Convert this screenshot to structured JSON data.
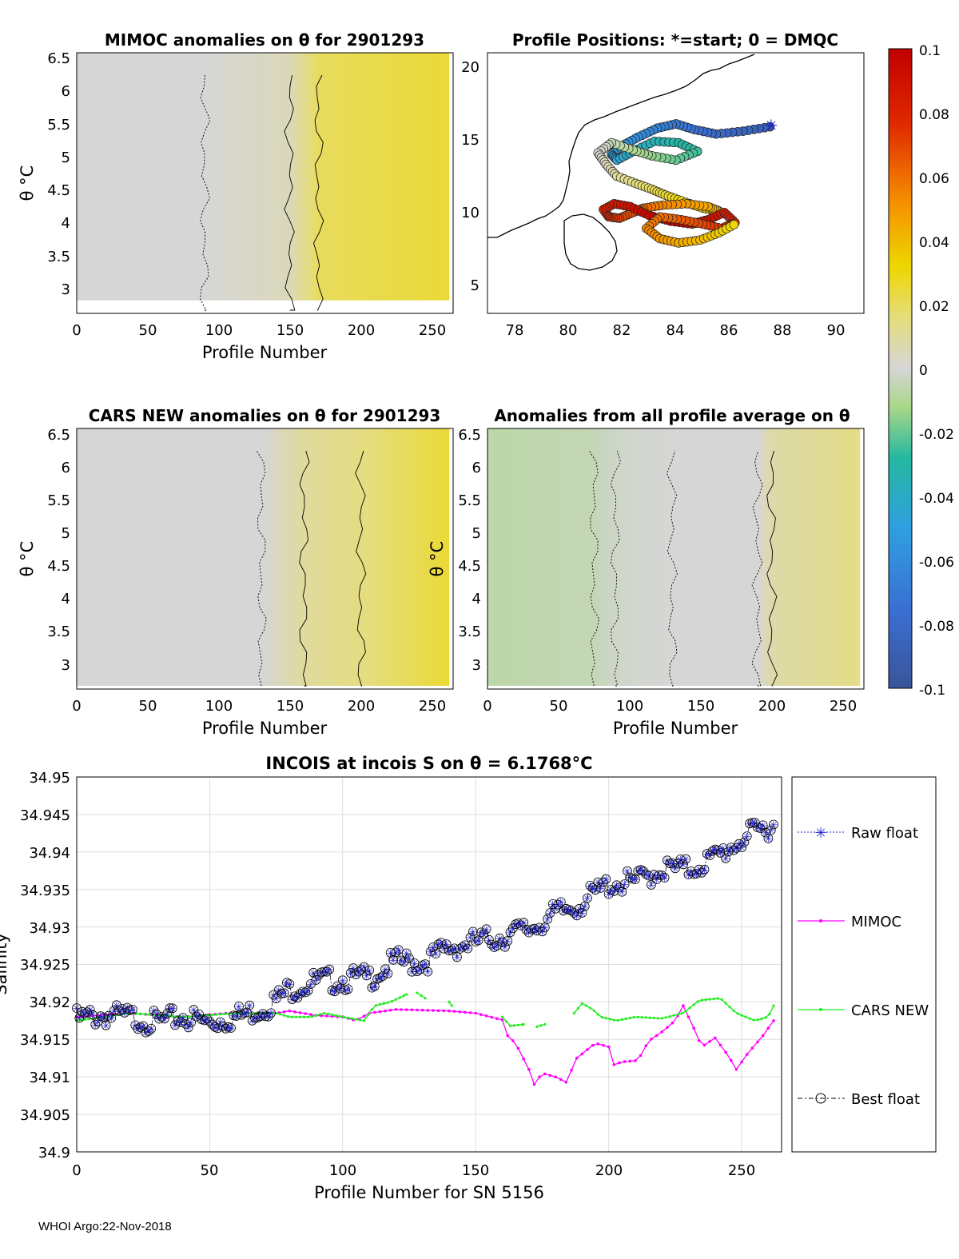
{
  "footer": "WHOI Argo:22-Nov-2018",
  "colors": {
    "raw_float": "#1f1fd0",
    "mimoc": "#ff00ff",
    "cars": "#22ee22",
    "best": "#000000",
    "grid": "#dddddd"
  },
  "colorbar": {
    "ticks": [
      "0.1",
      "0.08",
      "0.06",
      "0.04",
      "0.02",
      "0",
      "-0.02",
      "-0.04",
      "-0.06",
      "-0.08",
      "-0.1"
    ],
    "range": [
      -0.1,
      0.1
    ]
  },
  "panels": {
    "mimoc": {
      "title": "MIMOC anomalies on θ  for 2901293",
      "xlabel": "Profile Number",
      "ylabel": "θ °C",
      "xticks": [
        "0",
        "50",
        "100",
        "150",
        "200",
        "250"
      ],
      "yticks": [
        "6.5",
        "6",
        "5.5",
        "5",
        "4.5",
        "4",
        "3.5",
        "3"
      ]
    },
    "positions": {
      "title": "Profile Positions: *=start; 0 = DMQC",
      "xticks": [
        "78",
        "80",
        "82",
        "84",
        "86",
        "88",
        "90"
      ],
      "yticks": [
        "20",
        "15",
        "10",
        "5"
      ]
    },
    "cars": {
      "title": "CARS NEW anomalies on θ for 2901293",
      "xlabel": "Profile Number",
      "ylabel": "θ °C",
      "xticks": [
        "0",
        "50",
        "100",
        "150",
        "200",
        "250"
      ],
      "yticks": [
        "6.5",
        "6",
        "5.5",
        "5",
        "4.5",
        "4",
        "3.5",
        "3"
      ]
    },
    "average": {
      "title": "Anomalies from all profile average on θ",
      "xlabel": "Profile Number",
      "ylabel": "θ °C",
      "xticks": [
        "0",
        "50",
        "100",
        "150",
        "200",
        "250"
      ],
      "yticks": [
        "6.5",
        "6",
        "5.5",
        "5",
        "4.5",
        "4",
        "3.5",
        "3"
      ]
    }
  },
  "chart_data": {
    "type": "line",
    "title": "INCOIS at incois S on θ = 6.1768°C",
    "xlabel": "Profile Number for SN 5156",
    "ylabel": "Salinity",
    "xlim": [
      0,
      265
    ],
    "ylim": [
      34.9,
      34.95
    ],
    "xticks": [
      "0",
      "50",
      "100",
      "150",
      "200",
      "250"
    ],
    "yticks": [
      "34.95",
      "34.945",
      "34.94",
      "34.935",
      "34.93",
      "34.925",
      "34.92",
      "34.915",
      "34.91",
      "34.905",
      "34.9"
    ],
    "legend": [
      "Raw float",
      "MIMOC",
      "CARS NEW",
      "Best float"
    ],
    "series": [
      {
        "name": "Raw float / Best float",
        "knots": [
          [
            0,
            34.9185
          ],
          [
            10,
            34.919
          ],
          [
            20,
            34.9188
          ],
          [
            30,
            34.918
          ],
          [
            40,
            34.9188
          ],
          [
            50,
            34.918
          ],
          [
            60,
            34.9188
          ],
          [
            70,
            34.92
          ],
          [
            75,
            34.921
          ],
          [
            80,
            34.9225
          ],
          [
            90,
            34.9235
          ],
          [
            100,
            34.9238
          ],
          [
            110,
            34.924
          ],
          [
            120,
            34.9262
          ],
          [
            130,
            34.926
          ],
          [
            140,
            34.928
          ],
          [
            150,
            34.9288
          ],
          [
            160,
            34.9295
          ],
          [
            170,
            34.9305
          ],
          [
            180,
            34.9325
          ],
          [
            190,
            34.934
          ],
          [
            200,
            34.9365
          ],
          [
            210,
            34.9368
          ],
          [
            220,
            34.9385
          ],
          [
            230,
            34.9385
          ],
          [
            240,
            34.94
          ],
          [
            250,
            34.9425
          ],
          [
            262,
            34.9445
          ]
        ]
      },
      {
        "name": "MIMOC",
        "knots": [
          [
            0,
            34.918
          ],
          [
            20,
            34.9185
          ],
          [
            40,
            34.918
          ],
          [
            60,
            34.9186
          ],
          [
            75,
            34.9185
          ],
          [
            80,
            34.9188
          ],
          [
            90,
            34.9182
          ],
          [
            100,
            34.918
          ],
          [
            105,
            34.9175
          ],
          [
            110,
            34.9185
          ],
          [
            120,
            34.919
          ],
          [
            140,
            34.9188
          ],
          [
            150,
            34.9185
          ],
          [
            160,
            34.9176
          ],
          [
            162,
            34.9155
          ],
          [
            165,
            34.9145
          ],
          [
            170,
            34.911
          ],
          [
            172,
            34.909
          ],
          [
            175,
            34.9105
          ],
          [
            180,
            34.91
          ],
          [
            184,
            34.9093
          ],
          [
            188,
            34.9125
          ],
          [
            195,
            34.9145
          ],
          [
            200,
            34.914
          ],
          [
            201,
            34.9115
          ],
          [
            205,
            34.912
          ],
          [
            211,
            34.9122
          ],
          [
            215,
            34.9148
          ],
          [
            220,
            34.916
          ],
          [
            225,
            34.9175
          ],
          [
            228,
            34.9195
          ],
          [
            232,
            34.9165
          ],
          [
            235,
            34.914
          ],
          [
            240,
            34.9152
          ],
          [
            245,
            34.9128
          ],
          [
            248,
            34.911
          ],
          [
            252,
            34.913
          ],
          [
            258,
            34.9155
          ],
          [
            262,
            34.9175
          ]
        ]
      },
      {
        "name": "CARS NEW",
        "segments": [
          [
            [
              0,
              34.9175
            ],
            [
              20,
              34.9185
            ],
            [
              40,
              34.918
            ],
            [
              60,
              34.9185
            ],
            [
              75,
              34.9185
            ],
            [
              80,
              34.918
            ],
            [
              88,
              34.918
            ],
            [
              93,
              34.9185
            ],
            [
              100,
              34.918
            ],
            [
              108,
              34.9175
            ],
            [
              112,
              34.9195
            ],
            [
              118,
              34.92
            ],
            [
              124,
              34.921
            ]
          ],
          [
            [
              128,
              34.9212
            ],
            [
              131,
              34.9205
            ]
          ],
          [
            [
              140,
              34.92
            ],
            [
              141,
              34.9195
            ]
          ],
          [
            [
              160,
              34.918
            ],
            [
              163,
              34.9168
            ],
            [
              168,
              34.917
            ]
          ],
          [
            [
              173,
              34.9167
            ],
            [
              176,
              34.917
            ]
          ],
          [
            [
              187,
              34.9185
            ],
            [
              190,
              34.9198
            ],
            [
              194,
              34.919
            ],
            [
              197,
              34.918
            ],
            [
              203,
              34.9175
            ],
            [
              210,
              34.918
            ],
            [
              220,
              34.9178
            ],
            [
              228,
              34.9185
            ],
            [
              234,
              34.9202
            ],
            [
              242,
              34.9205
            ],
            [
              248,
              34.9185
            ],
            [
              255,
              34.9175
            ],
            [
              260,
              34.918
            ],
            [
              262,
              34.9195
            ]
          ]
        ]
      }
    ],
    "panel_fields": {
      "mimoc": {
        "anomaly_by_profile": [
          [
            0,
            0.0
          ],
          [
            90,
            0.0
          ],
          [
            150,
            0.005
          ],
          [
            170,
            0.02
          ],
          [
            262,
            0.025
          ]
        ],
        "theta_range": [
          2.8,
          6.6
        ]
      },
      "cars": {
        "anomaly_by_profile": [
          [
            0,
            0.0
          ],
          [
            130,
            0.0
          ],
          [
            160,
            0.01
          ],
          [
            200,
            0.015
          ],
          [
            262,
            0.025
          ]
        ],
        "theta_range": [
          2.65,
          6.6
        ]
      },
      "average": {
        "anomaly_by_profile": [
          [
            0,
            -0.007
          ],
          [
            75,
            -0.005
          ],
          [
            90,
            -0.002
          ],
          [
            130,
            0.0
          ],
          [
            190,
            0.0
          ],
          [
            200,
            0.008
          ],
          [
            262,
            0.014
          ]
        ],
        "theta_range": [
          2.65,
          6.6
        ]
      }
    },
    "positions_track": {
      "lon": [
        87.5,
        86.5,
        85.5,
        84.7,
        84.0,
        83.3,
        82.6,
        82.0,
        81.6,
        81.8,
        82.4,
        83.2,
        84.1,
        84.8,
        84.0,
        83.1,
        82.4,
        81.6,
        81.1,
        81.4,
        81.8,
        82.5,
        83.1,
        83.6,
        84.2,
        85.0,
        85.6,
        85.2,
        84.4,
        83.5,
        82.8,
        82.4,
        81.9,
        81.5,
        81.3,
        81.7,
        82.3,
        83.0,
        83.8,
        84.6,
        85.2,
        85.8,
        86.2,
        85.7,
        85.0,
        84.2,
        83.4,
        82.9,
        83.4,
        84.1,
        84.9,
        85.6,
        86.3
      ],
      "lat": [
        15.9,
        15.6,
        15.4,
        15.7,
        16.1,
        15.8,
        15.2,
        14.6,
        14.0,
        13.6,
        14.2,
        14.9,
        14.8,
        14.2,
        13.6,
        13.9,
        14.3,
        14.8,
        14.1,
        13.3,
        12.5,
        12.0,
        11.6,
        11.2,
        10.8,
        10.3,
        10.1,
        10.4,
        10.6,
        10.5,
        10.3,
        10.0,
        9.6,
        9.7,
        10.2,
        10.6,
        10.4,
        9.8,
        9.4,
        9.2,
        9.5,
        10.0,
        9.3,
        8.9,
        9.2,
        9.5,
        9.7,
        8.9,
        8.2,
        7.9,
        8.1,
        8.6,
        9.3
      ],
      "color_value": [
        -0.09,
        -0.085,
        -0.08,
        -0.075,
        -0.07,
        -0.065,
        -0.06,
        -0.055,
        -0.05,
        -0.045,
        -0.04,
        -0.035,
        -0.03,
        -0.025,
        -0.02,
        -0.015,
        -0.01,
        -0.005,
        0.0,
        0.005,
        0.01,
        0.015,
        0.02,
        0.025,
        0.03,
        0.035,
        0.04,
        0.045,
        0.05,
        0.055,
        0.06,
        0.065,
        0.07,
        0.075,
        0.08,
        0.085,
        0.09,
        0.095,
        0.1,
        0.095,
        0.09,
        0.085,
        0.08,
        0.075,
        0.07,
        0.065,
        0.06,
        0.055,
        0.05,
        0.045,
        0.04,
        0.035,
        0.03
      ]
    }
  }
}
